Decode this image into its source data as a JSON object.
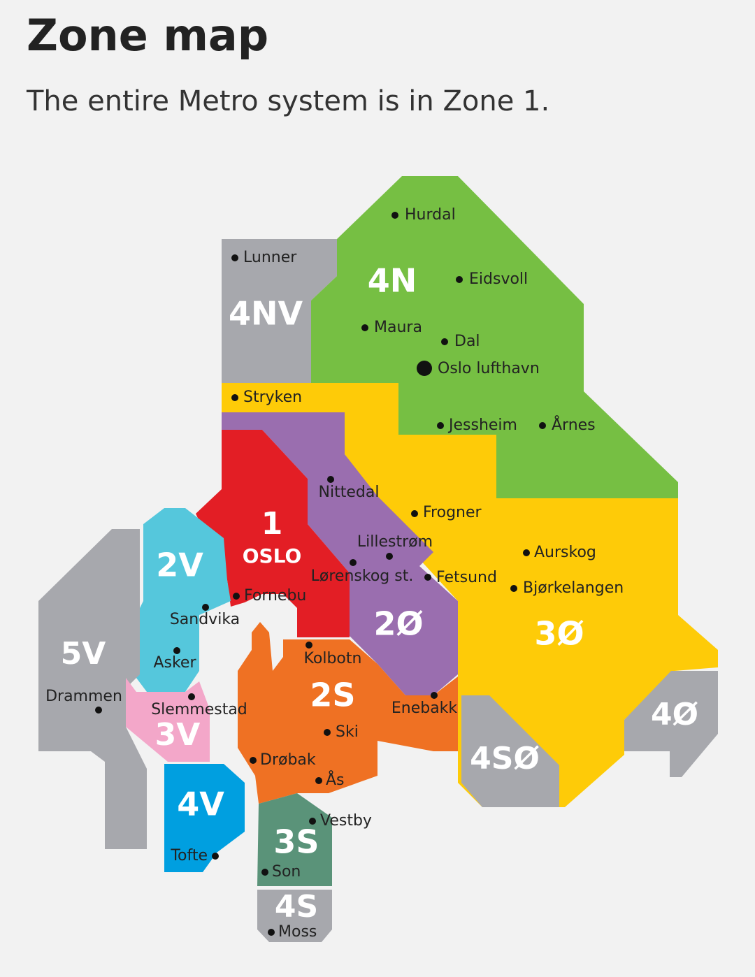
{
  "header": {
    "title": "Zone map",
    "subtitle": "The entire Metro system is in Zone 1."
  },
  "zones": [
    {
      "label": "4N"
    },
    {
      "label": "4NV"
    },
    {
      "label": "1"
    },
    {
      "label": "OSLO"
    },
    {
      "label": "2V"
    },
    {
      "label": "5V"
    },
    {
      "label": "3V"
    },
    {
      "label": "4V"
    },
    {
      "label": "2Ø"
    },
    {
      "label": "3Ø"
    },
    {
      "label": "2S"
    },
    {
      "label": "3S"
    },
    {
      "label": "4S"
    },
    {
      "label": "4SØ"
    },
    {
      "label": "4Ø"
    }
  ],
  "places": [
    {
      "name": "Hurdal"
    },
    {
      "name": "Lunner"
    },
    {
      "name": "Eidsvoll"
    },
    {
      "name": "Maura"
    },
    {
      "name": "Dal"
    },
    {
      "name": "Oslo lufthavn"
    },
    {
      "name": "Stryken"
    },
    {
      "name": "Jessheim"
    },
    {
      "name": "Årnes"
    },
    {
      "name": "Nittedal"
    },
    {
      "name": "Frogner"
    },
    {
      "name": "Lillestrøm"
    },
    {
      "name": "Aurskog"
    },
    {
      "name": "Lørenskog st."
    },
    {
      "name": "Fetsund"
    },
    {
      "name": "Bjørkelangen"
    },
    {
      "name": "Fornebu"
    },
    {
      "name": "Sandvika"
    },
    {
      "name": "Asker"
    },
    {
      "name": "Kolbotn"
    },
    {
      "name": "Drammen"
    },
    {
      "name": "Slemmestad"
    },
    {
      "name": "Enebakk"
    },
    {
      "name": "Ski"
    },
    {
      "name": "Drøbak"
    },
    {
      "name": "Ås"
    },
    {
      "name": "Vestby"
    },
    {
      "name": "Tofte"
    },
    {
      "name": "Son"
    },
    {
      "name": "Moss"
    }
  ]
}
